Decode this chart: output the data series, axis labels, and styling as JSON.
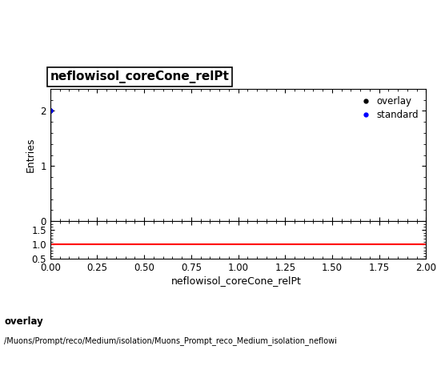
{
  "title": "neflowisol_coreCone_relPt",
  "xlabel": "neflowisol_coreCone_relPt",
  "ylabel": "Entries",
  "xlim": [
    0,
    2
  ],
  "ylim_main": [
    0,
    2.4
  ],
  "ylim_ratio": [
    0.5,
    1.8
  ],
  "yticks_main": [
    0,
    1,
    2
  ],
  "yticks_ratio": [
    0.5,
    1.0,
    1.5
  ],
  "overlay_color": "#000000",
  "standard_color": "#0000ff",
  "ratio_line_y": 1.0,
  "ratio_line_color": "#ff0000",
  "legend_labels": [
    "overlay",
    "standard"
  ],
  "footer_line1": "overlay",
  "footer_line2": "/Muons/Prompt/reco/Medium/isolation/Muons_Prompt_reco_Medium_isolation_neflowi",
  "background_color": "#ffffff",
  "title_fontsize": 11,
  "axis_fontsize": 9,
  "tick_fontsize": 8.5
}
